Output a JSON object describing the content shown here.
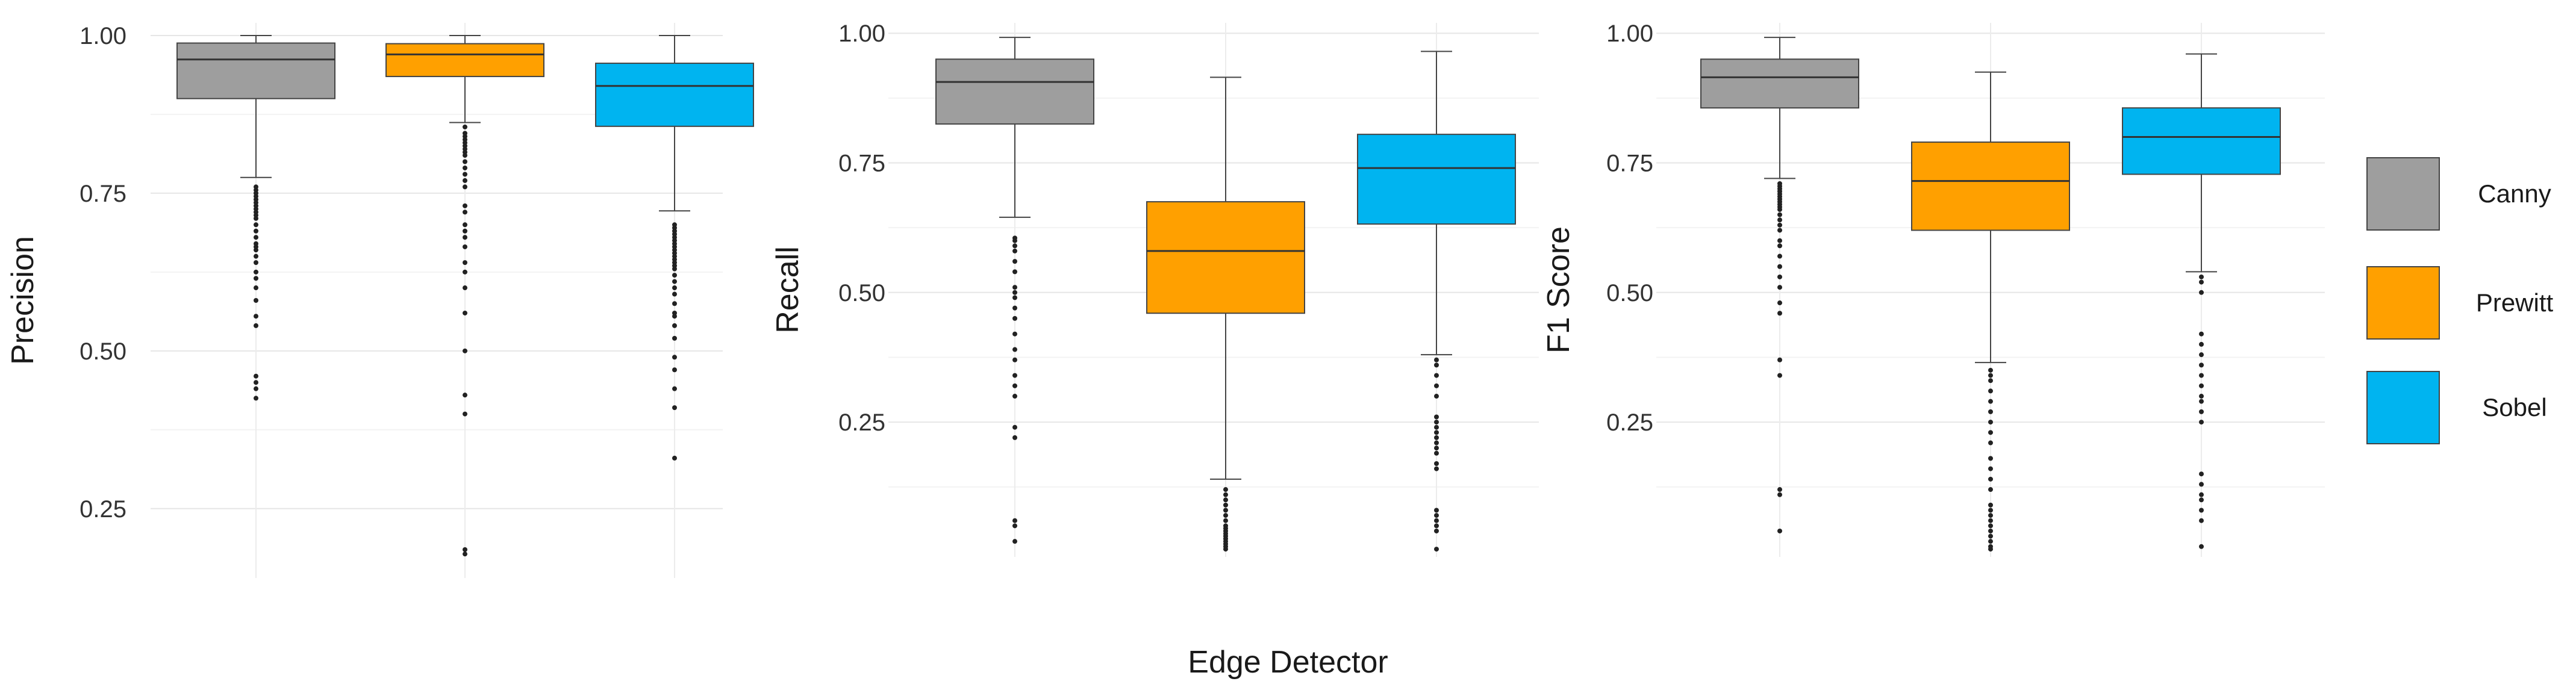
{
  "chart_data": {
    "type": "boxplot",
    "categories": [
      "Canny",
      "Prewitt",
      "Sobel"
    ],
    "colors": {
      "Canny": "#9e9e9e",
      "Prewitt": "#ffa000",
      "Sobel": "#00b4f0"
    },
    "xlabel": "Edge Detector",
    "legend": {
      "position": "right",
      "entries": [
        "Canny",
        "Prewitt",
        "Sobel"
      ]
    },
    "grid": true,
    "panels": [
      {
        "ylabel": "Precision",
        "ylim": [
          0.14,
          1.02
        ],
        "yticks": [
          0.25,
          0.5,
          0.75,
          1.0
        ],
        "yticklabels": [
          "0.25",
          "0.50",
          "0.75",
          "1.00"
        ],
        "boxes": [
          {
            "category": "Canny",
            "whisker_low": 0.775,
            "q1": 0.9,
            "median": 0.962,
            "q3": 0.988,
            "whisker_high": 1.0,
            "outliers": [
              0.76,
              0.755,
              0.75,
              0.745,
              0.74,
              0.735,
              0.73,
              0.725,
              0.72,
              0.715,
              0.71,
              0.7,
              0.69,
              0.68,
              0.67,
              0.665,
              0.66,
              0.65,
              0.64,
              0.625,
              0.615,
              0.6,
              0.58,
              0.555,
              0.54,
              0.46,
              0.45,
              0.44,
              0.425
            ]
          },
          {
            "category": "Prewitt",
            "whisker_low": 0.862,
            "q1": 0.935,
            "median": 0.97,
            "q3": 0.987,
            "whisker_high": 1.0,
            "outliers": [
              0.855,
              0.845,
              0.84,
              0.835,
              0.83,
              0.825,
              0.82,
              0.815,
              0.81,
              0.8,
              0.79,
              0.78,
              0.77,
              0.76,
              0.73,
              0.72,
              0.7,
              0.69,
              0.68,
              0.665,
              0.64,
              0.625,
              0.6,
              0.56,
              0.5,
              0.43,
              0.4,
              0.185,
              0.178
            ]
          },
          {
            "category": "Sobel",
            "whisker_low": 0.722,
            "q1": 0.856,
            "median": 0.92,
            "q3": 0.956,
            "whisker_high": 1.0,
            "outliers": [
              0.7,
              0.695,
              0.69,
              0.685,
              0.68,
              0.675,
              0.67,
              0.665,
              0.66,
              0.655,
              0.65,
              0.645,
              0.64,
              0.635,
              0.63,
              0.62,
              0.61,
              0.6,
              0.59,
              0.575,
              0.56,
              0.555,
              0.54,
              0.52,
              0.49,
              0.47,
              0.44,
              0.41,
              0.33
            ]
          }
        ]
      },
      {
        "ylabel": "Recall",
        "ylim": [
          -0.01,
          1.02
        ],
        "yticks": [
          0.25,
          0.5,
          0.75,
          1.0
        ],
        "yticklabels": [
          "0.25",
          "0.50",
          "0.75",
          "1.00"
        ],
        "boxes": [
          {
            "category": "Canny",
            "whisker_low": 0.645,
            "q1": 0.825,
            "median": 0.906,
            "q3": 0.95,
            "whisker_high": 0.992,
            "outliers": [
              0.605,
              0.6,
              0.59,
              0.58,
              0.56,
              0.54,
              0.51,
              0.5,
              0.49,
              0.47,
              0.45,
              0.42,
              0.39,
              0.37,
              0.34,
              0.32,
              0.3,
              0.24,
              0.22,
              0.06,
              0.05,
              0.02
            ]
          },
          {
            "category": "Prewitt",
            "whisker_low": 0.14,
            "q1": 0.46,
            "median": 0.58,
            "q3": 0.675,
            "whisker_high": 0.915,
            "outliers": [
              0.12,
              0.11,
              0.1,
              0.09,
              0.08,
              0.07,
              0.06,
              0.05,
              0.045,
              0.04,
              0.035,
              0.03,
              0.025,
              0.02,
              0.015,
              0.01,
              0.005
            ]
          },
          {
            "category": "Sobel",
            "whisker_low": 0.38,
            "q1": 0.632,
            "median": 0.74,
            "q3": 0.805,
            "whisker_high": 0.965,
            "outliers": [
              0.37,
              0.36,
              0.34,
              0.32,
              0.3,
              0.26,
              0.25,
              0.24,
              0.23,
              0.22,
              0.21,
              0.2,
              0.19,
              0.17,
              0.16,
              0.08,
              0.07,
              0.06,
              0.05,
              0.04,
              0.005
            ]
          }
        ]
      },
      {
        "ylabel": "F1 Score",
        "ylim": [
          -0.01,
          1.02
        ],
        "yticks": [
          0.25,
          0.5,
          0.75,
          1.0
        ],
        "yticklabels": [
          "0.25",
          "0.50",
          "0.75",
          "1.00"
        ],
        "boxes": [
          {
            "category": "Canny",
            "whisker_low": 0.72,
            "q1": 0.856,
            "median": 0.915,
            "q3": 0.95,
            "whisker_high": 0.992,
            "outliers": [
              0.71,
              0.705,
              0.7,
              0.695,
              0.69,
              0.685,
              0.68,
              0.675,
              0.67,
              0.665,
              0.66,
              0.65,
              0.64,
              0.63,
              0.62,
              0.6,
              0.59,
              0.57,
              0.55,
              0.53,
              0.51,
              0.48,
              0.46,
              0.37,
              0.34,
              0.12,
              0.11,
              0.04
            ]
          },
          {
            "category": "Prewitt",
            "whisker_low": 0.365,
            "q1": 0.62,
            "median": 0.715,
            "q3": 0.79,
            "whisker_high": 0.925,
            "outliers": [
              0.35,
              0.34,
              0.33,
              0.31,
              0.29,
              0.27,
              0.25,
              0.23,
              0.21,
              0.18,
              0.16,
              0.14,
              0.12,
              0.09,
              0.08,
              0.07,
              0.06,
              0.05,
              0.04,
              0.03,
              0.02,
              0.01,
              0.005
            ]
          },
          {
            "category": "Sobel",
            "whisker_low": 0.54,
            "q1": 0.728,
            "median": 0.8,
            "q3": 0.856,
            "whisker_high": 0.96,
            "outliers": [
              0.53,
              0.52,
              0.5,
              0.42,
              0.4,
              0.38,
              0.36,
              0.34,
              0.32,
              0.3,
              0.29,
              0.27,
              0.25,
              0.15,
              0.13,
              0.11,
              0.1,
              0.08,
              0.06,
              0.01
            ]
          }
        ]
      }
    ]
  }
}
